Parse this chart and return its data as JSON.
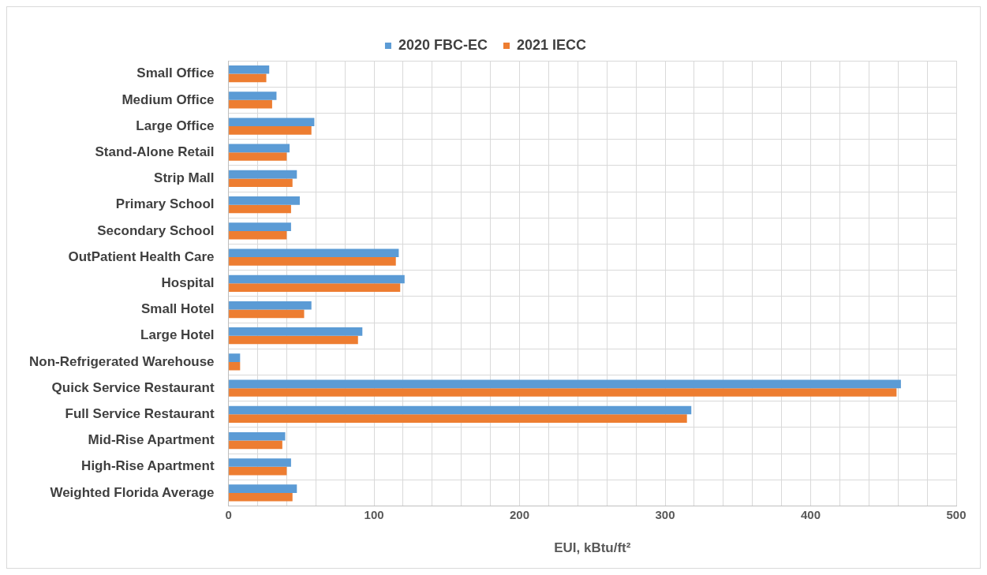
{
  "chart_data": {
    "type": "bar",
    "orientation": "horizontal",
    "xlabel": "EUI, kBtu/ft²",
    "categories": [
      "Small Office",
      "Medium Office",
      "Large Office",
      "Stand-Alone Retail",
      "Strip Mall",
      "Primary School",
      "Secondary School",
      "OutPatient Health Care",
      "Hospital",
      "Small Hotel",
      "Large Hotel",
      "Non-Refrigerated Warehouse",
      "Quick Service Restaurant",
      "Full Service Restaurant",
      "Mid-Rise Apartment",
      "High-Rise Apartment",
      "Weighted Florida Average"
    ],
    "series": [
      {
        "name": "2020 FBC-EC",
        "color": "#5b9bd5",
        "values": [
          28,
          33,
          59,
          42,
          47,
          49,
          43,
          117,
          121,
          57,
          92,
          8,
          462,
          318,
          39,
          43,
          47
        ]
      },
      {
        "name": "2021 IECC",
        "color": "#ed7d31",
        "values": [
          26,
          30,
          57,
          40,
          44,
          43,
          40,
          115,
          118,
          52,
          89,
          8,
          459,
          315,
          37,
          40,
          44
        ]
      }
    ],
    "xlim": [
      0,
      500
    ],
    "xticks": [
      0,
      {
        "value": 20,
        "label": null
      },
      {
        "value": 40,
        "label": null
      },
      {
        "value": 60,
        "label": null
      },
      {
        "value": 80,
        "label": null
      },
      100,
      {
        "value": 120,
        "label": null
      },
      {
        "value": 140,
        "label": null
      },
      {
        "value": 160,
        "label": null
      },
      {
        "value": 180,
        "label": null
      },
      200,
      {
        "value": 220,
        "label": null
      },
      {
        "value": 240,
        "label": null
      },
      {
        "value": 260,
        "label": null
      },
      {
        "value": 280,
        "label": null
      },
      300,
      {
        "value": 320,
        "label": null
      },
      {
        "value": 340,
        "label": null
      },
      {
        "value": 360,
        "label": null
      },
      {
        "value": 380,
        "label": null
      },
      400,
      {
        "value": 420,
        "label": null
      },
      {
        "value": 440,
        "label": null
      },
      {
        "value": 460,
        "label": null
      },
      {
        "value": 480,
        "label": null
      },
      500
    ],
    "grid": true,
    "legend": "top"
  }
}
